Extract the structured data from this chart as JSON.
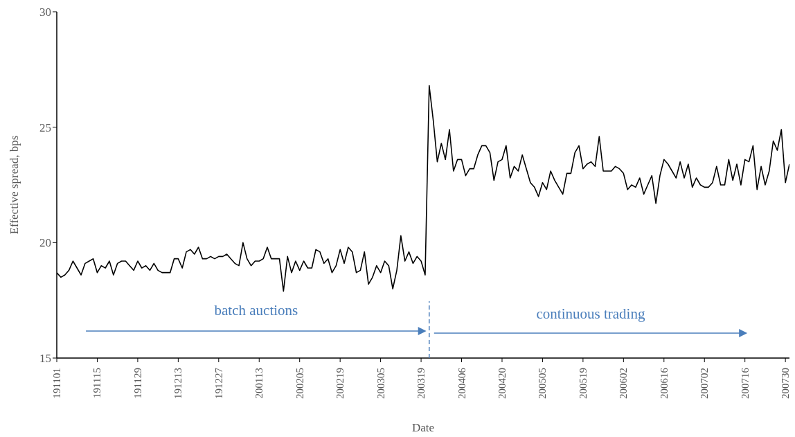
{
  "chart_data": {
    "type": "line",
    "xlabel": "Date",
    "ylabel": "Effective spread, bps",
    "categories": [
      "191101",
      null,
      null,
      null,
      null,
      null,
      null,
      null,
      null,
      null,
      "191115",
      null,
      null,
      null,
      null,
      null,
      null,
      null,
      null,
      null,
      "191129",
      null,
      null,
      null,
      null,
      null,
      null,
      null,
      null,
      null,
      "191213",
      null,
      null,
      null,
      null,
      null,
      null,
      null,
      null,
      null,
      "191227",
      null,
      null,
      null,
      null,
      null,
      null,
      null,
      null,
      null,
      "200113",
      null,
      null,
      null,
      null,
      null,
      null,
      null,
      null,
      null,
      "200205",
      null,
      null,
      null,
      null,
      null,
      null,
      null,
      null,
      null,
      "200219",
      null,
      null,
      null,
      null,
      null,
      null,
      null,
      null,
      null,
      "200305",
      null,
      null,
      null,
      null,
      null,
      null,
      null,
      null,
      null,
      "200319",
      null,
      null,
      null,
      null,
      null,
      null,
      null,
      null,
      null,
      "200406",
      null,
      null,
      null,
      null,
      null,
      null,
      null,
      null,
      null,
      "200420",
      null,
      null,
      null,
      null,
      null,
      null,
      null,
      null,
      null,
      "200505",
      null,
      null,
      null,
      null,
      null,
      null,
      null,
      null,
      null,
      "200519",
      null,
      null,
      null,
      null,
      null,
      null,
      null,
      null,
      null,
      "200602",
      null,
      null,
      null,
      null,
      null,
      null,
      null,
      null,
      null,
      "200616",
      null,
      null,
      null,
      null,
      null,
      null,
      null,
      null,
      null,
      "200702",
      null,
      null,
      null,
      null,
      null,
      null,
      null,
      null,
      null,
      "200716",
      null,
      null,
      null,
      null,
      null,
      null,
      null,
      null,
      null,
      "200730",
      null
    ],
    "series": [
      {
        "color": "#000000",
        "values": [
          18.7,
          18.5,
          18.6,
          18.8,
          19.2,
          18.9,
          18.6,
          19.1,
          19.2,
          19.3,
          18.7,
          19.0,
          18.9,
          19.2,
          18.6,
          19.1,
          19.2,
          19.2,
          19.0,
          18.8,
          19.2,
          18.9,
          19.0,
          18.8,
          19.1,
          18.8,
          18.7,
          18.7,
          18.7,
          19.3,
          19.3,
          18.9,
          19.6,
          19.7,
          19.5,
          19.8,
          19.3,
          19.3,
          19.4,
          19.3,
          19.4,
          19.4,
          19.5,
          19.3,
          19.1,
          19.0,
          20.0,
          19.3,
          19.0,
          19.2,
          19.2,
          19.3,
          19.8,
          19.3,
          19.3,
          19.3,
          17.9,
          19.4,
          18.7,
          19.2,
          18.8,
          19.2,
          18.9,
          18.9,
          19.7,
          19.6,
          19.1,
          19.3,
          18.7,
          19.0,
          19.7,
          19.1,
          19.8,
          19.6,
          18.7,
          18.8,
          19.6,
          18.2,
          18.5,
          19.0,
          18.7,
          19.2,
          19.0,
          18.0,
          18.8,
          20.3,
          19.2,
          19.6,
          19.1,
          19.4,
          19.2,
          18.6,
          26.8,
          25.3,
          23.5,
          24.3,
          23.6,
          24.9,
          23.1,
          23.6,
          23.6,
          22.9,
          23.2,
          23.2,
          23.8,
          24.2,
          24.2,
          23.9,
          22.7,
          23.5,
          23.6,
          24.2,
          22.8,
          23.3,
          23.1,
          23.8,
          23.2,
          22.6,
          22.4,
          22.0,
          22.6,
          22.3,
          23.1,
          22.7,
          22.4,
          22.1,
          23.0,
          23.0,
          23.9,
          24.2,
          23.2,
          23.4,
          23.5,
          23.3,
          24.6,
          23.1,
          23.1,
          23.1,
          23.3,
          23.2,
          23.0,
          22.3,
          22.5,
          22.4,
          22.8,
          22.1,
          22.5,
          22.9,
          21.7,
          22.9,
          23.6,
          23.4,
          23.1,
          22.8,
          23.5,
          22.8,
          23.4,
          22.4,
          22.8,
          22.5,
          22.4,
          22.4,
          22.6,
          23.3,
          22.5,
          22.5,
          23.6,
          22.7,
          23.4,
          22.5,
          23.6,
          23.5,
          24.2,
          22.3,
          23.3,
          22.5,
          23.1,
          24.4,
          24.0,
          24.9,
          22.6,
          23.4
        ]
      }
    ],
    "ylim": [
      15,
      30
    ],
    "yticks": [
      15,
      20,
      25,
      30
    ],
    "annotations": [
      "batch auctions",
      "continuous trading"
    ],
    "grid": false,
    "legend": false
  }
}
